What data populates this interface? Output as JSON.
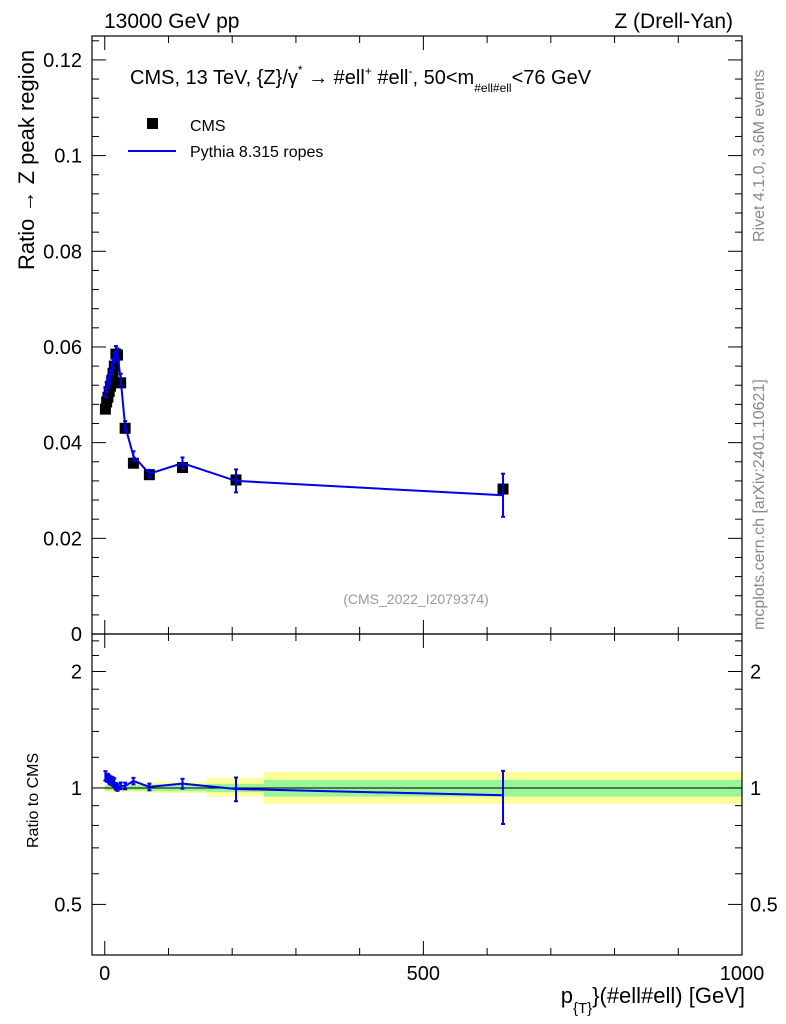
{
  "header": {
    "left": "13000 GeV pp",
    "right": "Z (Drell-Yan)"
  },
  "side_labels": {
    "rivet": "Rivet 4.1.0,  3.6M events",
    "mcplots": "mcplots.cern.ch [arXiv:2401.10621]"
  },
  "chart_data": [
    {
      "type": "scatter",
      "panel": "main",
      "title": "CMS, 13 TeV, {Z}/γ* → #ell⁺ #ell⁻,  50<m#ell#ell<76 GeV",
      "title_parts": {
        "prefix": "CMS, 13 TeV, {Z}/γ",
        "star": "*",
        "arrow": " →  #ell",
        "plus": "+",
        "mid": " #ell",
        "minus": "-",
        "cut": ",  50<m",
        "sub": "#ell#ell",
        "tail": "<76 GeV"
      },
      "watermark": "(CMS_2022_I2079374)",
      "ylabel": "Ratio → Z peak region",
      "xlim": [
        -20,
        1000
      ],
      "ylim": [
        0,
        0.125
      ],
      "y_ticks": [
        "0",
        "0.02",
        "0.04",
        "0.06",
        "0.08",
        "0.1",
        "0.12"
      ],
      "legend": {
        "position": "top-left",
        "entries": [
          "CMS",
          "Pythia 8.315 ropes"
        ]
      },
      "series": [
        {
          "name": "CMS",
          "style": "black-square",
          "x": [
            1,
            3,
            5,
            7,
            9,
            11,
            13,
            15,
            17.5,
            20,
            25,
            32,
            45,
            70,
            122,
            206,
            625
          ],
          "y": [
            0.047,
            0.0485,
            0.0495,
            0.0507,
            0.0518,
            0.053,
            0.0545,
            0.056,
            0.0585,
            0.0583,
            0.0525,
            0.043,
            0.0357,
            0.0333,
            0.0348,
            0.0322,
            0.0303
          ]
        },
        {
          "name": "Pythia 8.315 ropes",
          "style": "blue-line",
          "x": [
            1,
            3,
            5,
            7,
            9,
            11,
            13,
            15,
            17.5,
            20,
            25,
            32,
            45,
            70,
            122,
            206,
            625
          ],
          "y": [
            0.0505,
            0.0516,
            0.0525,
            0.0533,
            0.0542,
            0.0553,
            0.0566,
            0.0578,
            0.059,
            0.0585,
            0.0532,
            0.0435,
            0.0372,
            0.0335,
            0.0357,
            0.032,
            0.029
          ],
          "yerr": [
            0.001,
            0.001,
            0.001,
            0.001,
            0.001,
            0.001,
            0.001,
            0.001,
            0.0012,
            0.0012,
            0.0012,
            0.001,
            0.001,
            0.0008,
            0.0012,
            0.0024,
            0.0045
          ]
        }
      ]
    },
    {
      "type": "line",
      "panel": "ratio",
      "ylabel": "Ratio to CMS",
      "xlabel": "p{T}(#ell#ell) [GeV]",
      "xlabel_parts": {
        "p": "p",
        "sub": "{T}",
        "rest": "}(#ell#ell) [GeV]"
      },
      "xlim": [
        -20,
        1000
      ],
      "ylim": [
        0.37,
        2.5
      ],
      "log_y": true,
      "y_ticks": [
        "0.5",
        "1",
        "2"
      ],
      "x_ticks": [
        "0",
        "500",
        "1000"
      ],
      "bands": {
        "x_edges": [
          0,
          10,
          20,
          30,
          45,
          70,
          160,
          250,
          1000
        ],
        "inner_lo": [
          0.985,
          0.985,
          0.985,
          0.985,
          0.985,
          0.98,
          0.975,
          0.95
        ],
        "inner_hi": [
          1.015,
          1.015,
          1.015,
          1.015,
          1.015,
          1.02,
          1.025,
          1.05
        ],
        "outer_lo": [
          0.975,
          0.975,
          0.975,
          0.975,
          0.975,
          0.97,
          0.95,
          0.91
        ],
        "outer_hi": [
          1.025,
          1.025,
          1.025,
          1.025,
          1.025,
          1.035,
          1.06,
          1.1
        ]
      },
      "series": [
        {
          "name": "Pythia 8.315 ropes",
          "x": [
            1,
            3,
            5,
            7,
            9,
            11,
            13,
            15,
            17.5,
            20,
            25,
            32,
            45,
            70,
            122,
            206,
            625
          ],
          "y": [
            1.075,
            1.064,
            1.061,
            1.052,
            1.046,
            1.043,
            1.039,
            1.033,
            1.01,
            1.003,
            1.013,
            1.012,
            1.042,
            1.006,
            1.026,
            0.994,
            0.957
          ],
          "yerr": [
            0.03,
            0.025,
            0.025,
            0.025,
            0.025,
            0.025,
            0.025,
            0.025,
            0.02,
            0.02,
            0.02,
            0.02,
            0.02,
            0.02,
            0.03,
            0.07,
            0.15
          ]
        }
      ]
    }
  ]
}
